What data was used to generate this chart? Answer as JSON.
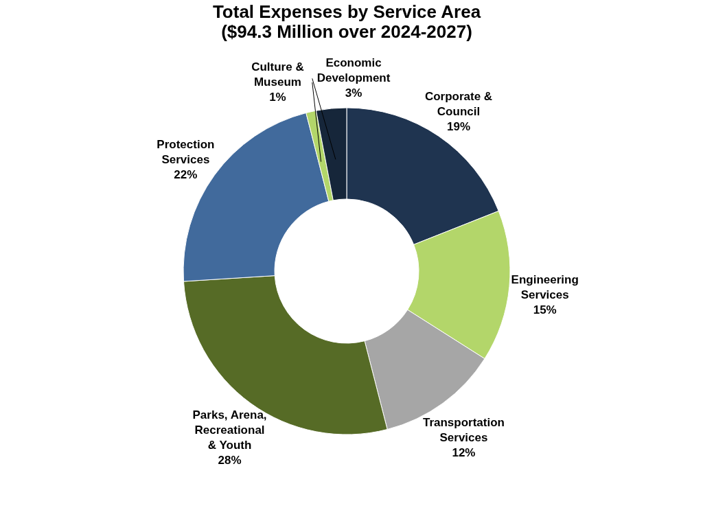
{
  "chart_data": {
    "type": "donut",
    "title": "Total Expenses by Service Area",
    "subtitle": "($94.3 Million over 2024-2027)",
    "categories": [
      "Corporate & Council",
      "Engineering Services",
      "Transportation Services",
      "Parks, Arena, Recreational & Youth",
      "Protection Services",
      "Culture & Museum",
      "Economic Development"
    ],
    "values": [
      19,
      15,
      12,
      28,
      22,
      1,
      3
    ],
    "value_labels": [
      "19%",
      "15%",
      "12%",
      "28%",
      "22%",
      "1%",
      "3%"
    ],
    "colors": [
      "#1f3450",
      "#b3d66a",
      "#a6a6a6",
      "#566b26",
      "#416a9c",
      "#b3d66a",
      "#16263a"
    ],
    "legend": false
  }
}
